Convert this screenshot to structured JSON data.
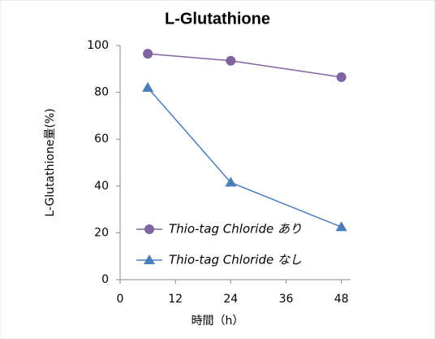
{
  "chart_data": {
    "type": "line",
    "title": "L-Glutathione",
    "x_label": "時間（h）",
    "y_label": "L-Glutathione量(%)",
    "x": [
      6,
      24,
      48
    ],
    "series": [
      {
        "name": "Thio-tag Chloride あり",
        "color": "#8064a2",
        "marker": "circle",
        "values": [
          96.5,
          93.5,
          86.5
        ]
      },
      {
        "name": "Thio-tag Chloride なし",
        "color": "#4a7ebb",
        "marker": "triangle",
        "values": [
          82,
          41.5,
          22.5
        ]
      }
    ],
    "xlim": [
      0,
      50
    ],
    "xticks": [
      0,
      12,
      24,
      36,
      48
    ],
    "ylim": [
      0,
      100
    ],
    "yticks": [
      0,
      20,
      40,
      60,
      80,
      100
    ],
    "grid": false,
    "legend": "lower right"
  }
}
